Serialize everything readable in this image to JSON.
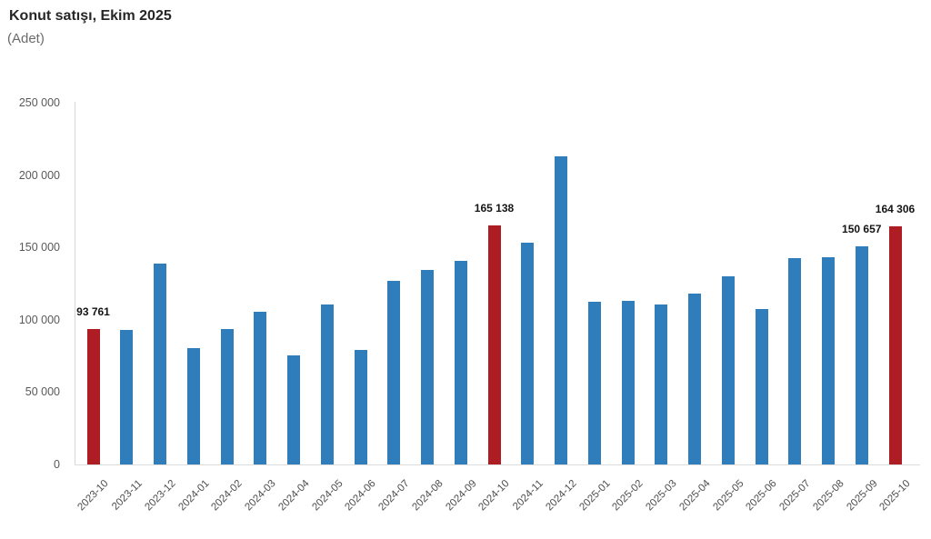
{
  "header": {
    "title": "Konut satışı, Ekim 2025",
    "subtitle": "(Adet)"
  },
  "chart_data": {
    "type": "bar",
    "title": "Konut satışı, Ekim 2025",
    "ylabel": "(Adet)",
    "xlabel": "",
    "categories": [
      "2023-10",
      "2023-11",
      "2023-12",
      "2024-01",
      "2024-02",
      "2024-03",
      "2024-04",
      "2024-05",
      "2024-06",
      "2024-07",
      "2024-08",
      "2024-09",
      "2024-10",
      "2024-11",
      "2024-12",
      "2025-01",
      "2025-02",
      "2025-03",
      "2025-04",
      "2025-05",
      "2025-06",
      "2025-07",
      "2025-08",
      "2025-09",
      "2025-10"
    ],
    "values": [
      93761,
      93014,
      138577,
      80308,
      93902,
      105394,
      75569,
      110588,
      79313,
      127088,
      134155,
      140919,
      165138,
      153014,
      212637,
      112173,
      112818,
      110795,
      118359,
      130025,
      107723,
      142858,
      143319,
      150657,
      164306
    ],
    "value_labels": [
      {
        "category": "2023-10",
        "text": "93 761"
      },
      {
        "category": "2024-10",
        "text": "165 138"
      },
      {
        "category": "2025-09",
        "text": "150 657"
      },
      {
        "category": "2025-10",
        "text": "164 306"
      }
    ],
    "highlighted_categories": [
      "2023-10",
      "2024-10",
      "2025-10"
    ],
    "colors": {
      "bar": "#2f7dbb",
      "highlight": "#ae1c24"
    },
    "ylim": [
      0,
      250000
    ],
    "yticks": [
      0,
      50000,
      100000,
      150000,
      200000,
      250000
    ],
    "ytick_labels": [
      "0",
      "50 000",
      "100 000",
      "150 000",
      "200 000",
      "250 000"
    ],
    "grid": false,
    "legend": false
  }
}
